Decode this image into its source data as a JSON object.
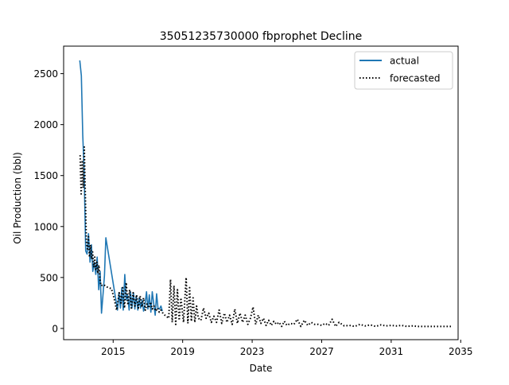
{
  "chart_data": {
    "type": "line",
    "title": "35051235730000 fbprophet Decline",
    "xlabel": "Date",
    "ylabel": "Oil Production (bbl)",
    "xlim": [
      2012.15,
      2034.85
    ],
    "ylim": [
      -110,
      2770
    ],
    "x_ticks": [
      2015,
      2019,
      2023,
      2027,
      2031,
      2035
    ],
    "y_ticks": [
      0,
      500,
      1000,
      1500,
      2000,
      2500
    ],
    "grid": false,
    "legend": {
      "placement": "top-right",
      "entries": [
        "actual",
        "forecasted"
      ]
    },
    "series": [
      {
        "name": "actual",
        "style": "solid",
        "color": "#1f77b4",
        "x": [
          2013.08,
          2013.17,
          2013.25,
          2013.33,
          2013.42,
          2013.5,
          2013.58,
          2013.67,
          2013.75,
          2013.83,
          2013.92,
          2014.0,
          2014.08,
          2014.17,
          2014.25,
          2014.33,
          2014.42,
          2014.5,
          2014.58,
          2015.25,
          2015.33,
          2015.42,
          2015.5,
          2015.58,
          2015.67,
          2015.75,
          2015.83,
          2015.92,
          2016.0,
          2016.08,
          2016.17,
          2016.25,
          2016.33,
          2016.42,
          2016.5,
          2016.58,
          2016.67,
          2016.75,
          2016.83,
          2016.92,
          2017.0,
          2017.08,
          2017.17,
          2017.25,
          2017.33,
          2017.42,
          2017.5,
          2017.58,
          2017.67,
          2017.75,
          2017.83
        ],
        "y": [
          2630,
          2480,
          1900,
          1550,
          760,
          730,
          930,
          650,
          820,
          560,
          650,
          530,
          700,
          380,
          560,
          150,
          340,
          520,
          890,
          180,
          350,
          200,
          400,
          180,
          530,
          280,
          330,
          180,
          360,
          200,
          350,
          190,
          320,
          180,
          300,
          200,
          280,
          170,
          230,
          360,
          190,
          330,
          160,
          360,
          250,
          130,
          340,
          200,
          190,
          220,
          170
        ]
      },
      {
        "name": "forecasted",
        "style": "dotted",
        "color": "#000000",
        "x": [
          2013.1,
          2013.16,
          2013.22,
          2013.28,
          2013.34,
          2013.4,
          2013.46,
          2013.52,
          2013.58,
          2013.64,
          2013.7,
          2013.76,
          2013.82,
          2013.88,
          2013.94,
          2014.0,
          2014.06,
          2014.12,
          2014.18,
          2014.24,
          2014.3,
          2014.45,
          2014.6,
          2014.75,
          2014.9,
          2015.05,
          2015.2,
          2015.35,
          2015.45,
          2015.55,
          2015.65,
          2015.75,
          2015.85,
          2015.95,
          2016.05,
          2016.15,
          2016.25,
          2016.35,
          2016.45,
          2016.55,
          2016.65,
          2016.75,
          2016.85,
          2016.95,
          2017.05,
          2017.15,
          2017.25,
          2017.35,
          2017.45,
          2017.55,
          2017.65,
          2017.75,
          2017.9,
          2018.05,
          2018.2,
          2018.3,
          2018.4,
          2018.5,
          2018.6,
          2018.7,
          2018.8,
          2018.9,
          2019.05,
          2019.2,
          2019.3,
          2019.4,
          2019.5,
          2019.6,
          2019.7,
          2019.8,
          2019.9,
          2020.05,
          2020.2,
          2020.35,
          2020.5,
          2020.65,
          2020.8,
          2020.95,
          2021.1,
          2021.25,
          2021.4,
          2021.55,
          2021.7,
          2021.85,
          2022.0,
          2022.15,
          2022.3,
          2022.45,
          2022.6,
          2022.75,
          2022.9,
          2023.05,
          2023.2,
          2023.35,
          2023.5,
          2023.65,
          2023.8,
          2023.95,
          2024.1,
          2024.25,
          2024.4,
          2024.55,
          2024.7,
          2024.85,
          2025.0,
          2025.2,
          2025.4,
          2025.6,
          2025.8,
          2026.0,
          2026.2,
          2026.4,
          2026.6,
          2026.8,
          2027.0,
          2027.2,
          2027.4,
          2027.6,
          2027.8,
          2028.0,
          2028.3,
          2028.6,
          2028.9,
          2029.2,
          2029.5,
          2029.8,
          2030.1,
          2030.4,
          2030.7,
          2031.0,
          2031.3,
          2031.6,
          2031.9,
          2032.2,
          2032.5,
          2032.8,
          2033.1,
          2033.4,
          2033.7,
          2034.0,
          2034.3,
          2034.5
        ],
        "y": [
          1700,
          1320,
          1650,
          1380,
          1780,
          1300,
          850,
          780,
          900,
          700,
          820,
          680,
          750,
          600,
          700,
          580,
          650,
          540,
          620,
          480,
          420,
          430,
          410,
          400,
          390,
          300,
          180,
          350,
          250,
          400,
          200,
          450,
          230,
          380,
          200,
          350,
          220,
          330,
          200,
          320,
          210,
          300,
          180,
          240,
          200,
          260,
          190,
          220,
          170,
          200,
          160,
          180,
          140,
          120,
          100,
          480,
          60,
          420,
          40,
          380,
          80,
          300,
          60,
          500,
          50,
          400,
          70,
          300,
          60,
          220,
          100,
          80,
          200,
          100,
          150,
          60,
          120,
          60,
          180,
          50,
          150,
          60,
          130,
          40,
          190,
          50,
          150,
          60,
          130,
          40,
          100,
          210,
          40,
          130,
          50,
          100,
          30,
          80,
          30,
          70,
          40,
          60,
          20,
          70,
          30,
          50,
          40,
          90,
          20,
          80,
          30,
          60,
          40,
          40,
          30,
          50,
          30,
          90,
          20,
          60,
          25,
          30,
          20,
          40,
          25,
          35,
          20,
          35,
          25,
          30,
          25,
          30,
          20,
          25,
          20,
          20,
          20,
          20,
          20,
          20,
          20,
          20
        ]
      }
    ]
  }
}
